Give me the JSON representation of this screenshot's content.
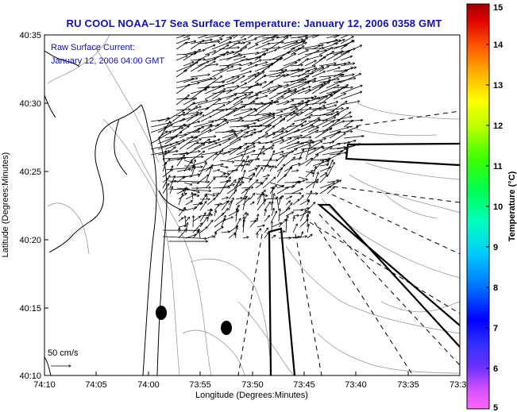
{
  "title": "RU COOL  NOAA–17  Sea Surface Temperature:  January 12, 2006 0358 GMT",
  "info": {
    "line1": "Raw Surface Current:",
    "line2": "January 12, 2006 04:00 GMT"
  },
  "axes": {
    "xlabel": "Longitude (Degrees:Minutes)",
    "ylabel": "Latitude (Degrees:Minutes)",
    "xticks": [
      "74:10",
      "74:05",
      "74:00",
      "73:55",
      "73:50",
      "73:45",
      "73:40",
      "73:35",
      "73:3"
    ],
    "yticks": [
      "40:35",
      "40:30",
      "40:25",
      "40:20",
      "40:15",
      "40:10"
    ]
  },
  "scale": {
    "label": "50 cm/s"
  },
  "colorbar": {
    "label": "Temperature (°C)",
    "ticks": [
      "15",
      "14",
      "13",
      "12",
      "11",
      "10",
      "9",
      "8",
      "7",
      "6",
      "5"
    ],
    "min": 5,
    "max": 15
  },
  "colors": {
    "title": "#1010b0",
    "coast": "#000000",
    "contour": "#9a9a9a"
  }
}
